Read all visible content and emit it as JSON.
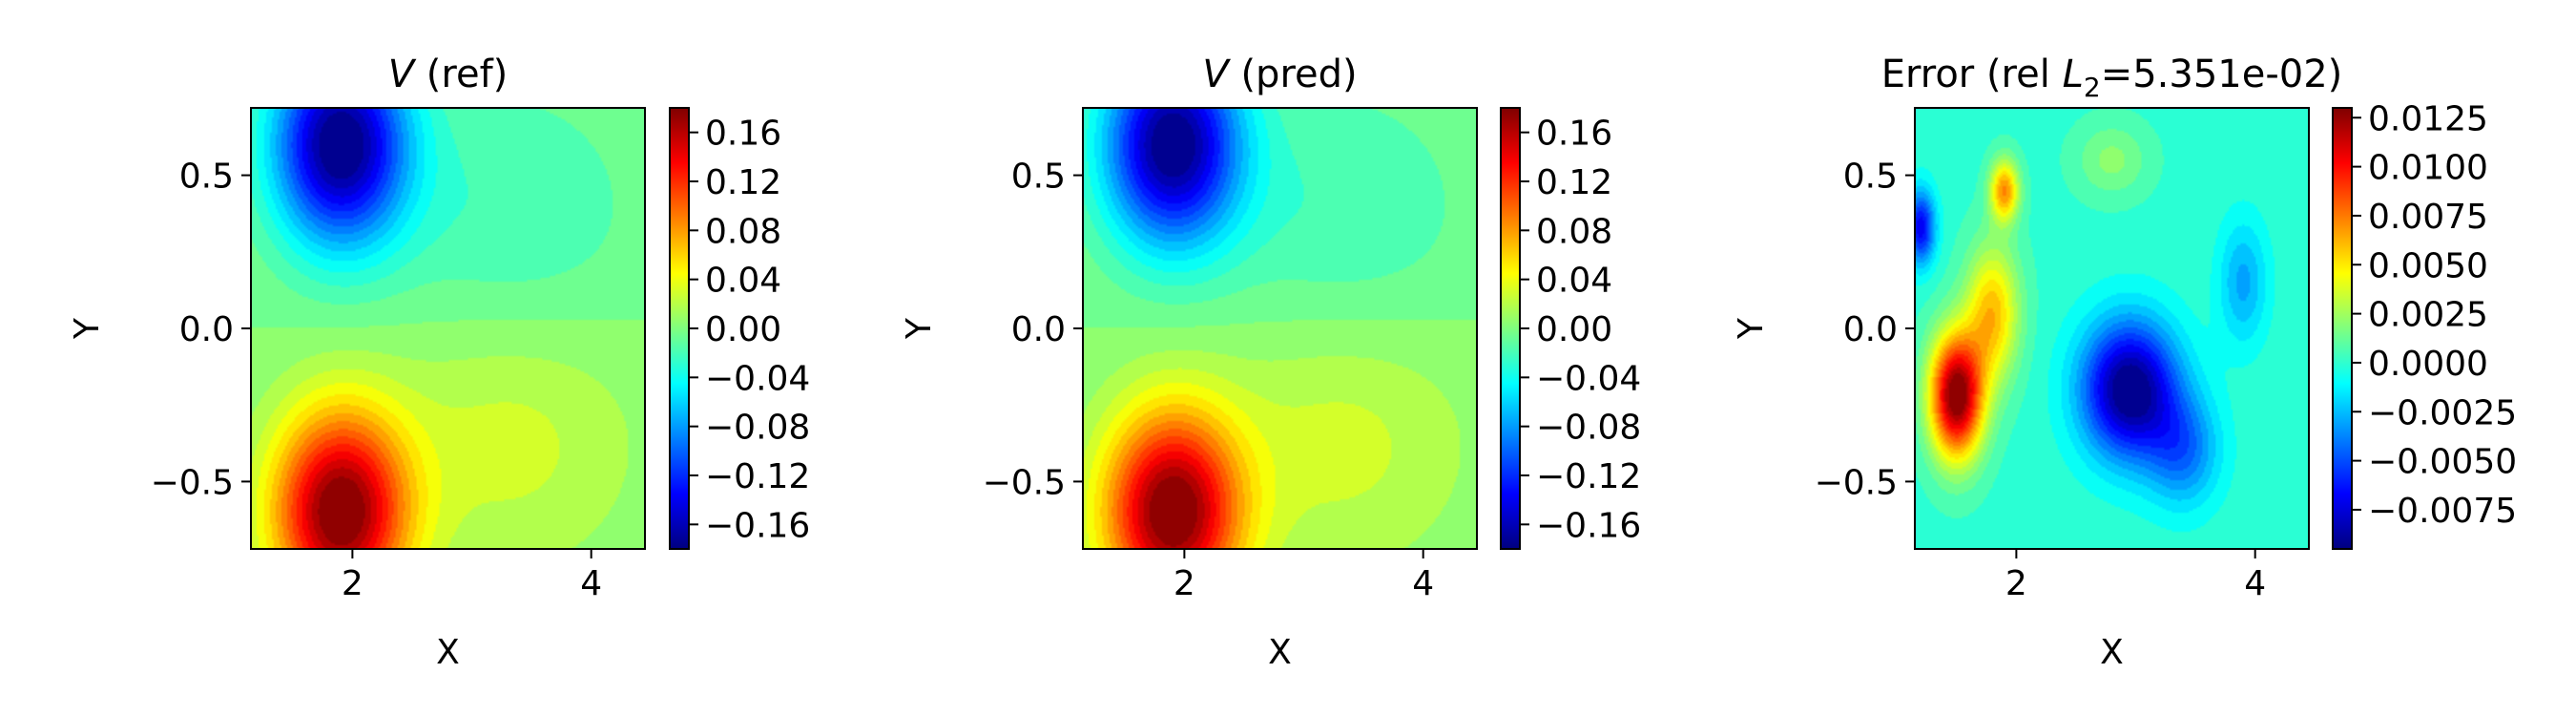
{
  "colormap": [
    "#00007f",
    "#0000ff",
    "#007fff",
    "#00ffff",
    "#7fff7f",
    "#ffff00",
    "#ff7f00",
    "#ff0000",
    "#7f0000"
  ],
  "chart_data": [
    {
      "type": "heatmap",
      "title_symbol": "V",
      "title_rest": " (ref)",
      "xlabel": "X",
      "ylabel": "Y",
      "xlim": [
        1.15,
        4.45
      ],
      "ylim": [
        -0.72,
        0.72
      ],
      "xticks": [
        {
          "v": 2,
          "label": "2"
        },
        {
          "v": 4,
          "label": "4"
        }
      ],
      "yticks": [
        {
          "v": 0.5,
          "label": "0.5"
        },
        {
          "v": 0.0,
          "label": "0.0"
        },
        {
          "v": -0.5,
          "label": "−0.5"
        }
      ],
      "value_range": [
        -0.18,
        0.18
      ],
      "colorbar_ticks": [
        {
          "v": 0.16,
          "label": "0.16"
        },
        {
          "v": 0.12,
          "label": "0.12"
        },
        {
          "v": 0.08,
          "label": "0.08"
        },
        {
          "v": 0.04,
          "label": "0.04"
        },
        {
          "v": 0.0,
          "label": "0.00"
        },
        {
          "v": -0.04,
          "label": "−0.04"
        },
        {
          "v": -0.08,
          "label": "−0.08"
        },
        {
          "v": -0.12,
          "label": "−0.12"
        },
        {
          "v": -0.16,
          "label": "−0.16"
        }
      ],
      "field": {
        "kind": "gaussians",
        "levels": 30,
        "bumps": [
          {
            "x": 1.9,
            "y": 0.6,
            "amp": -0.185,
            "sx": 0.55,
            "sy": 0.32
          },
          {
            "x": 1.9,
            "y": -0.6,
            "amp": 0.185,
            "sx": 0.55,
            "sy": 0.32
          },
          {
            "x": 3.3,
            "y": 0.35,
            "amp": -0.025,
            "sx": 1.1,
            "sy": 0.45
          },
          {
            "x": 3.3,
            "y": -0.35,
            "amp": 0.03,
            "sx": 1.1,
            "sy": 0.45
          }
        ]
      }
    },
    {
      "type": "heatmap",
      "title_symbol": "V",
      "title_rest": " (pred)",
      "xlabel": "X",
      "ylabel": "Y",
      "xlim": [
        1.15,
        4.45
      ],
      "ylim": [
        -0.72,
        0.72
      ],
      "xticks": [
        {
          "v": 2,
          "label": "2"
        },
        {
          "v": 4,
          "label": "4"
        }
      ],
      "yticks": [
        {
          "v": 0.5,
          "label": "0.5"
        },
        {
          "v": 0.0,
          "label": "0.0"
        },
        {
          "v": -0.5,
          "label": "−0.5"
        }
      ],
      "value_range": [
        -0.18,
        0.18
      ],
      "colorbar_ticks": [
        {
          "v": 0.16,
          "label": "0.16"
        },
        {
          "v": 0.12,
          "label": "0.12"
        },
        {
          "v": 0.08,
          "label": "0.08"
        },
        {
          "v": 0.04,
          "label": "0.04"
        },
        {
          "v": 0.0,
          "label": "0.00"
        },
        {
          "v": -0.04,
          "label": "−0.04"
        },
        {
          "v": -0.08,
          "label": "−0.08"
        },
        {
          "v": -0.12,
          "label": "−0.12"
        },
        {
          "v": -0.16,
          "label": "−0.16"
        }
      ],
      "field": {
        "kind": "gaussians",
        "levels": 30,
        "bumps": [
          {
            "x": 1.9,
            "y": 0.6,
            "amp": -0.183,
            "sx": 0.56,
            "sy": 0.32
          },
          {
            "x": 1.9,
            "y": -0.6,
            "amp": 0.186,
            "sx": 0.56,
            "sy": 0.32
          },
          {
            "x": 3.3,
            "y": 0.35,
            "amp": -0.025,
            "sx": 1.1,
            "sy": 0.45
          },
          {
            "x": 3.3,
            "y": -0.35,
            "amp": 0.03,
            "sx": 1.1,
            "sy": 0.45
          }
        ]
      }
    },
    {
      "type": "heatmap",
      "title_prefix": "Error (rel ",
      "title_symbol": "L",
      "title_sub": "2",
      "title_value": "=5.351e-02)",
      "xlabel": "X",
      "ylabel": "Y",
      "xlim": [
        1.15,
        4.45
      ],
      "ylim": [
        -0.72,
        0.72
      ],
      "xticks": [
        {
          "v": 2,
          "label": "2"
        },
        {
          "v": 4,
          "label": "4"
        }
      ],
      "yticks": [
        {
          "v": 0.5,
          "label": "0.5"
        },
        {
          "v": 0.0,
          "label": "0.0"
        },
        {
          "v": -0.5,
          "label": "−0.5"
        }
      ],
      "value_range": [
        -0.0095,
        0.013
      ],
      "colorbar_ticks": [
        {
          "v": 0.0125,
          "label": "0.0125"
        },
        {
          "v": 0.01,
          "label": "0.0100"
        },
        {
          "v": 0.0075,
          "label": "0.0075"
        },
        {
          "v": 0.005,
          "label": "0.0050"
        },
        {
          "v": 0.0025,
          "label": "0.0025"
        },
        {
          "v": 0.0,
          "label": "0.0000"
        },
        {
          "v": -0.0025,
          "label": "−0.0025"
        },
        {
          "v": -0.005,
          "label": "−0.0050"
        },
        {
          "v": -0.0075,
          "label": "−0.0075"
        }
      ],
      "field": {
        "kind": "gaussians",
        "levels": 30,
        "bumps": [
          {
            "x": 1.5,
            "y": -0.22,
            "amp": 0.0135,
            "sx": 0.22,
            "sy": 0.2
          },
          {
            "x": 1.8,
            "y": 0.05,
            "amp": 0.006,
            "sx": 0.22,
            "sy": 0.22
          },
          {
            "x": 1.9,
            "y": 0.45,
            "amp": 0.007,
            "sx": 0.12,
            "sy": 0.1
          },
          {
            "x": 1.2,
            "y": 0.33,
            "amp": -0.007,
            "sx": 0.12,
            "sy": 0.12
          },
          {
            "x": 2.95,
            "y": -0.2,
            "amp": -0.01,
            "sx": 0.4,
            "sy": 0.22
          },
          {
            "x": 3.4,
            "y": -0.4,
            "amp": -0.004,
            "sx": 0.3,
            "sy": 0.18
          },
          {
            "x": 3.9,
            "y": 0.15,
            "amp": -0.003,
            "sx": 0.2,
            "sy": 0.2
          },
          {
            "x": 2.8,
            "y": 0.55,
            "amp": 0.002,
            "sx": 0.3,
            "sy": 0.12
          }
        ]
      }
    }
  ]
}
